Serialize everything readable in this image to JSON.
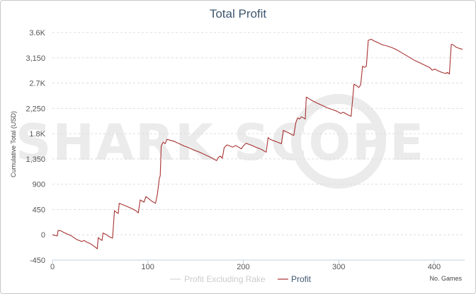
{
  "chart_data": {
    "type": "line",
    "title": "Total Profit",
    "ylabel": "Cumulative Total (USD)",
    "xlabel": "No. Games",
    "xlim": [
      0,
      432
    ],
    "ylim": [
      -450,
      3600
    ],
    "x_ticks": [
      0,
      100,
      200,
      300,
      400
    ],
    "x_tick_labels": [
      "0",
      "100",
      "200",
      "300",
      "400"
    ],
    "y_ticks": [
      3600,
      3150,
      2700,
      2250,
      1800,
      1350,
      900,
      450,
      0,
      -450
    ],
    "y_tick_labels": [
      "3.6K",
      "3,150",
      "2.7K",
      "2,250",
      "1.8K",
      "1,350",
      "900",
      "450",
      "0",
      "-450"
    ],
    "grid": true,
    "legend_position": "bottom-center",
    "watermark": "SHARK SCOPE",
    "series": [
      {
        "name": "Profit Excluding Rake",
        "color": "#d0d0d0",
        "visible": false,
        "points": []
      },
      {
        "name": "Profit",
        "color": "#a83232",
        "visible": true,
        "points": [
          [
            0,
            0
          ],
          [
            5,
            -20
          ],
          [
            6,
            80
          ],
          [
            9,
            70
          ],
          [
            12,
            40
          ],
          [
            16,
            10
          ],
          [
            20,
            -20
          ],
          [
            25,
            -80
          ],
          [
            28,
            -100
          ],
          [
            31,
            -120
          ],
          [
            33,
            -100
          ],
          [
            36,
            -130
          ],
          [
            40,
            -160
          ],
          [
            45,
            -220
          ],
          [
            47,
            -250
          ],
          [
            48,
            -50
          ],
          [
            50,
            -80
          ],
          [
            52,
            -100
          ],
          [
            53,
            30
          ],
          [
            56,
            10
          ],
          [
            59,
            -30
          ],
          [
            63,
            -60
          ],
          [
            65,
            430
          ],
          [
            67,
            400
          ],
          [
            69,
            380
          ],
          [
            70,
            560
          ],
          [
            73,
            540
          ],
          [
            76,
            520
          ],
          [
            80,
            490
          ],
          [
            84,
            460
          ],
          [
            88,
            420
          ],
          [
            90,
            390
          ],
          [
            92,
            620
          ],
          [
            94,
            600
          ],
          [
            96,
            580
          ],
          [
            98,
            680
          ],
          [
            101,
            640
          ],
          [
            104,
            600
          ],
          [
            108,
            560
          ],
          [
            110,
            720
          ],
          [
            112,
            1000
          ],
          [
            113,
            1050
          ],
          [
            114,
            1580
          ],
          [
            116,
            1650
          ],
          [
            118,
            1620
          ],
          [
            120,
            1700
          ],
          [
            124,
            1680
          ],
          [
            128,
            1660
          ],
          [
            133,
            1620
          ],
          [
            138,
            1580
          ],
          [
            143,
            1550
          ],
          [
            148,
            1510
          ],
          [
            153,
            1480
          ],
          [
            158,
            1440
          ],
          [
            163,
            1400
          ],
          [
            168,
            1360
          ],
          [
            172,
            1320
          ],
          [
            174,
            1380
          ],
          [
            176,
            1400
          ],
          [
            178,
            1360
          ],
          [
            180,
            1550
          ],
          [
            183,
            1600
          ],
          [
            186,
            1580
          ],
          [
            189,
            1560
          ],
          [
            192,
            1590
          ],
          [
            195,
            1560
          ],
          [
            198,
            1530
          ],
          [
            200,
            1580
          ],
          [
            203,
            1630
          ],
          [
            206,
            1610
          ],
          [
            209,
            1590
          ],
          [
            213,
            1560
          ],
          [
            216,
            1540
          ],
          [
            219,
            1520
          ],
          [
            222,
            1490
          ],
          [
            224,
            1470
          ],
          [
            226,
            1730
          ],
          [
            228,
            1700
          ],
          [
            231,
            1680
          ],
          [
            234,
            1660
          ],
          [
            237,
            1640
          ],
          [
            240,
            1620
          ],
          [
            242,
            1860
          ],
          [
            244,
            1840
          ],
          [
            247,
            1820
          ],
          [
            249,
            1800
          ],
          [
            251,
            1780
          ],
          [
            253,
            1770
          ],
          [
            255,
            1990
          ],
          [
            257,
            2080
          ],
          [
            259,
            2060
          ],
          [
            261,
            2100
          ],
          [
            263,
            2080
          ],
          [
            265,
            2060
          ],
          [
            266,
            2450
          ],
          [
            269,
            2420
          ],
          [
            273,
            2380
          ],
          [
            278,
            2340
          ],
          [
            283,
            2300
          ],
          [
            288,
            2260
          ],
          [
            293,
            2230
          ],
          [
            298,
            2200
          ],
          [
            302,
            2160
          ],
          [
            305,
            2180
          ],
          [
            309,
            2140
          ],
          [
            313,
            2110
          ],
          [
            316,
            2680
          ],
          [
            319,
            2650
          ],
          [
            321,
            2620
          ],
          [
            323,
            2670
          ],
          [
            325,
            3000
          ],
          [
            327,
            2980
          ],
          [
            329,
            3000
          ],
          [
            331,
            3460
          ],
          [
            334,
            3480
          ],
          [
            337,
            3450
          ],
          [
            341,
            3420
          ],
          [
            346,
            3380
          ],
          [
            351,
            3360
          ],
          [
            356,
            3330
          ],
          [
            360,
            3300
          ],
          [
            365,
            3250
          ],
          [
            370,
            3200
          ],
          [
            375,
            3150
          ],
          [
            380,
            3100
          ],
          [
            385,
            3060
          ],
          [
            390,
            3020
          ],
          [
            395,
            2980
          ],
          [
            398,
            2930
          ],
          [
            401,
            2950
          ],
          [
            404,
            2920
          ],
          [
            408,
            2890
          ],
          [
            412,
            2870
          ],
          [
            414,
            2890
          ],
          [
            416,
            2860
          ],
          [
            418,
            3390
          ],
          [
            420,
            3380
          ],
          [
            423,
            3340
          ],
          [
            426,
            3320
          ],
          [
            430,
            3300
          ]
        ]
      }
    ]
  }
}
